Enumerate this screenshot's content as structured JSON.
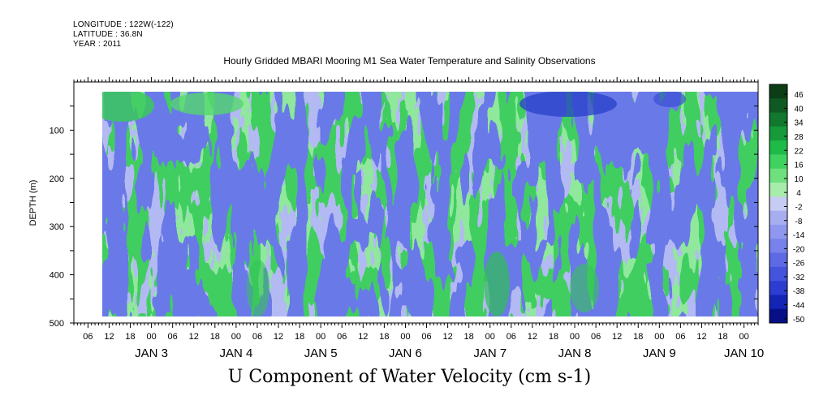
{
  "header": {
    "longitude": "LONGITUDE : 122W(-122)",
    "latitude": "LATITUDE : 36.8N",
    "year": "YEAR : 2011"
  },
  "chart_data": {
    "type": "heatmap",
    "title": "Hourly Gridded MBARI Mooring M1 Sea Water Temperature and Salinity Observations",
    "xlabel": "U Component of Water Velocity (cm s-1)",
    "ylabel": "DEPTH (m)",
    "ylim": [
      500,
      0
    ],
    "y_ticks": [
      100,
      200,
      300,
      400,
      500
    ],
    "data_depth_range": [
      20,
      490
    ],
    "x_axis": {
      "start": "JAN 2 02:00",
      "end": "JAN 10 04:00",
      "data_start": "JAN 2 12:00",
      "hour_ticks": [
        "06",
        "12",
        "18",
        "00",
        "06",
        "12",
        "18",
        "00",
        "06",
        "12",
        "18",
        "00",
        "06",
        "12",
        "18",
        "00",
        "06",
        "12",
        "18",
        "00",
        "06",
        "12",
        "18",
        "00",
        "06",
        "12",
        "18",
        "00",
        "06",
        "12",
        "18",
        "00"
      ],
      "day_labels": [
        "JAN  3",
        "JAN  4",
        "JAN  5",
        "JAN  6",
        "JAN  7",
        "JAN  8",
        "JAN  9",
        "JAN 10"
      ]
    },
    "colorbar": {
      "levels": [
        "46",
        "40",
        "34",
        "28",
        "22",
        "16",
        "10",
        "4",
        "-2",
        "-8",
        "-14",
        "-20",
        "-26",
        "-32",
        "-38",
        "-44",
        "-50"
      ],
      "colors": [
        "#0b3d17",
        "#0e5a22",
        "#11782d",
        "#169a3a",
        "#1fbb48",
        "#3fd25f",
        "#6fe07d",
        "#a7ecab",
        "#c7cdf2",
        "#a7aef0",
        "#8f98ee",
        "#7782ea",
        "#5d6ae4",
        "#4554dd",
        "#2c3ed1",
        "#1424b5",
        "#060f86"
      ]
    },
    "field_summary": "U velocity shown as alternating green (positive) and blue (negative) vertical bands over depth and time"
  }
}
